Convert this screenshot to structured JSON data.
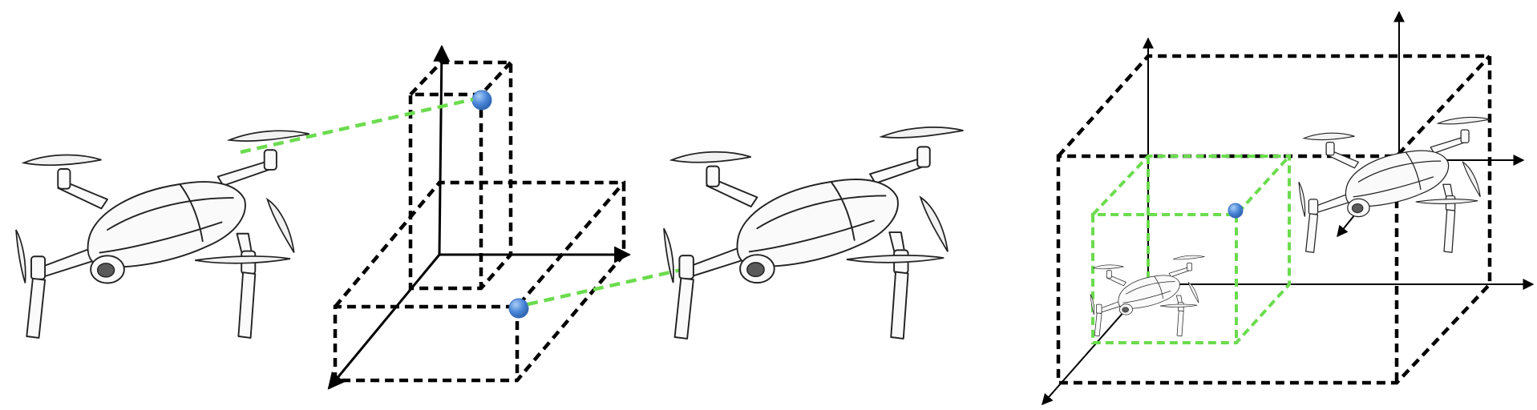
{
  "figure": {
    "panels": [
      {
        "id": "left-panel",
        "description_items": [
          "drone-a",
          "corner-frame",
          "drone-b"
        ]
      },
      {
        "id": "right-panel",
        "description_items": [
          "cube-frame",
          "inner-green-cube",
          "drone-small",
          "drone-large"
        ]
      }
    ],
    "colors": {
      "dashed_box": "#000000",
      "green_dashed": "#6bdc4e",
      "marker_fill": "#4a86d8",
      "marker_highlight": "#a9cdf5",
      "axis": "#000000"
    },
    "icons": [
      "drone-icon",
      "point-marker-icon",
      "axis-arrow-icon"
    ]
  }
}
